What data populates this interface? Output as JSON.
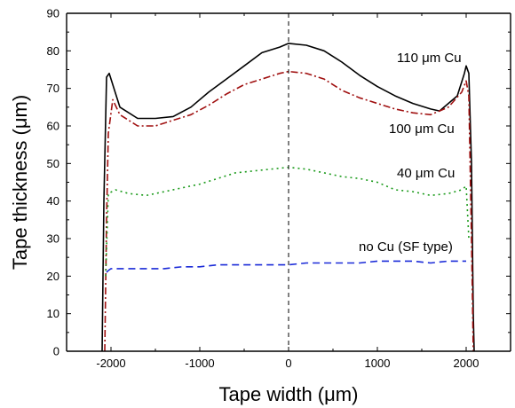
{
  "chart_data": {
    "type": "line",
    "xlabel": "Tape width (μm)",
    "ylabel": "Tape thickness (μm)",
    "xlim": [
      -2500,
      2500
    ],
    "ylim": [
      0,
      90
    ],
    "x_ticks": [
      -2000,
      -1000,
      0,
      1000,
      2000
    ],
    "x_tick_labels": [
      "-2000",
      "-1000",
      "0",
      "1000",
      "2000"
    ],
    "y_ticks": [
      0,
      10,
      20,
      30,
      40,
      50,
      60,
      70,
      80,
      90
    ],
    "y_tick_labels": [
      "0",
      "10",
      "20",
      "30",
      "40",
      "50",
      "60",
      "70",
      "80",
      "90"
    ],
    "grid": false,
    "reference_line": {
      "x": 0,
      "style": "dashed",
      "color": "#000000"
    },
    "series": [
      {
        "name": "110 μm Cu",
        "color": "#000000",
        "dash": "solid",
        "x": [
          -2100,
          -2080,
          -2050,
          -2020,
          -1900,
          -1700,
          -1500,
          -1300,
          -1100,
          -900,
          -700,
          -500,
          -300,
          -100,
          0,
          200,
          400,
          600,
          800,
          1000,
          1200,
          1400,
          1600,
          1700,
          1800,
          1900,
          1980,
          2000,
          2030,
          2060,
          2080,
          2090
        ],
        "y": [
          0,
          40,
          73,
          74,
          65,
          62,
          62,
          62.5,
          65,
          69,
          72.5,
          76,
          79.5,
          81,
          82,
          81.5,
          80,
          77,
          73.5,
          70.5,
          68,
          66,
          64.5,
          64,
          66,
          68,
          74,
          76,
          74,
          50,
          10,
          0
        ]
      },
      {
        "name": "100 μm Cu",
        "color": "#a01010",
        "dash": "dashdot",
        "x": [
          -2070,
          -2050,
          -2030,
          -1980,
          -1900,
          -1700,
          -1500,
          -1300,
          -1100,
          -900,
          -700,
          -500,
          -300,
          -100,
          0,
          200,
          400,
          600,
          800,
          1000,
          1200,
          1400,
          1600,
          1800,
          1950,
          2000,
          2030,
          2060,
          2080
        ],
        "y": [
          0,
          35,
          58,
          67,
          63,
          60,
          60,
          61.5,
          63,
          65.5,
          68.5,
          71,
          72.5,
          74,
          74.5,
          74,
          72.5,
          69.5,
          67.5,
          66,
          64.5,
          63.5,
          63,
          65,
          69,
          72,
          68,
          30,
          0
        ]
      },
      {
        "name": "40 μm Cu",
        "color": "#1a9a1a",
        "dash": "dotted",
        "x": [
          -2060,
          -2030,
          -1950,
          -1800,
          -1600,
          -1400,
          -1200,
          -1000,
          -800,
          -600,
          -400,
          -200,
          0,
          200,
          400,
          600,
          800,
          1000,
          1200,
          1400,
          1600,
          1800,
          1950,
          2000,
          2030
        ],
        "y": [
          20,
          42,
          43,
          42,
          41.5,
          42.5,
          43.5,
          44.5,
          46,
          47.5,
          48,
          48.5,
          49,
          48.5,
          47.5,
          46.5,
          46,
          45,
          43,
          42.5,
          41.5,
          42,
          43,
          44,
          30
        ]
      },
      {
        "name": "no Cu (SF type)",
        "color": "#1a2ad8",
        "dash": "dashed",
        "x": [
          -2050,
          -2030,
          -2000,
          -1800,
          -1600,
          -1400,
          -1200,
          -1000,
          -800,
          -600,
          -400,
          -200,
          0,
          200,
          400,
          600,
          800,
          1000,
          1200,
          1400,
          1600,
          1800,
          2000
        ],
        "y": [
          21,
          21.5,
          22,
          22,
          22,
          22,
          22.5,
          22.5,
          23,
          23,
          23,
          23,
          23,
          23.5,
          23.5,
          23.5,
          23.5,
          24,
          24,
          24,
          23.5,
          24,
          24
        ]
      }
    ],
    "annotations": [
      {
        "text": "110 μm Cu",
        "series": "110 μm Cu"
      },
      {
        "text": "100 μm Cu",
        "series": "100 μm Cu"
      },
      {
        "text": "40 μm Cu",
        "series": "40 μm Cu"
      },
      {
        "text": "no Cu (SF type)",
        "series": "no Cu (SF type)"
      }
    ]
  }
}
